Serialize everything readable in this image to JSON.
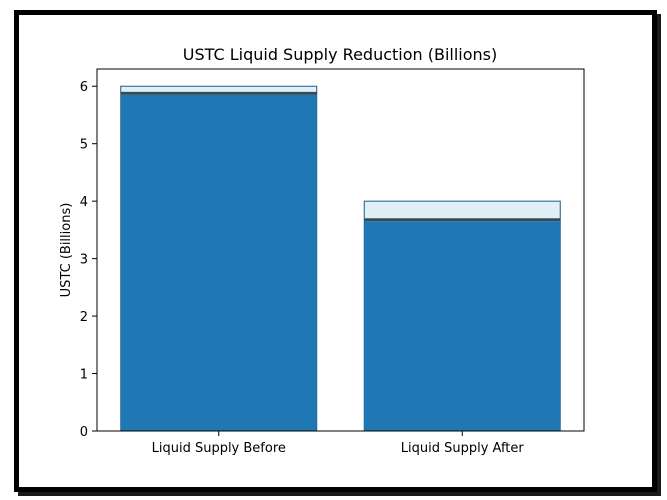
{
  "chart_data": {
    "type": "bar",
    "title": "USTC Liquid Supply Reduction (Billions)",
    "xlabel": "",
    "ylabel": "USTC (Billions)",
    "ylim": [
      0,
      6.3
    ],
    "yticks": [
      0,
      1,
      2,
      3,
      4,
      5,
      6
    ],
    "categories": [
      "Liquid Supply Before",
      "Liquid Supply After"
    ],
    "values": [
      6.0,
      4.0
    ],
    "inner_values": [
      5.85,
      3.65
    ],
    "grid": false,
    "colors": {
      "bar": "#1f77b4",
      "bar_cap": "#dff0f7",
      "bar_edge": "#1a5c8a",
      "bar_shadow": "#3a4a55"
    }
  }
}
